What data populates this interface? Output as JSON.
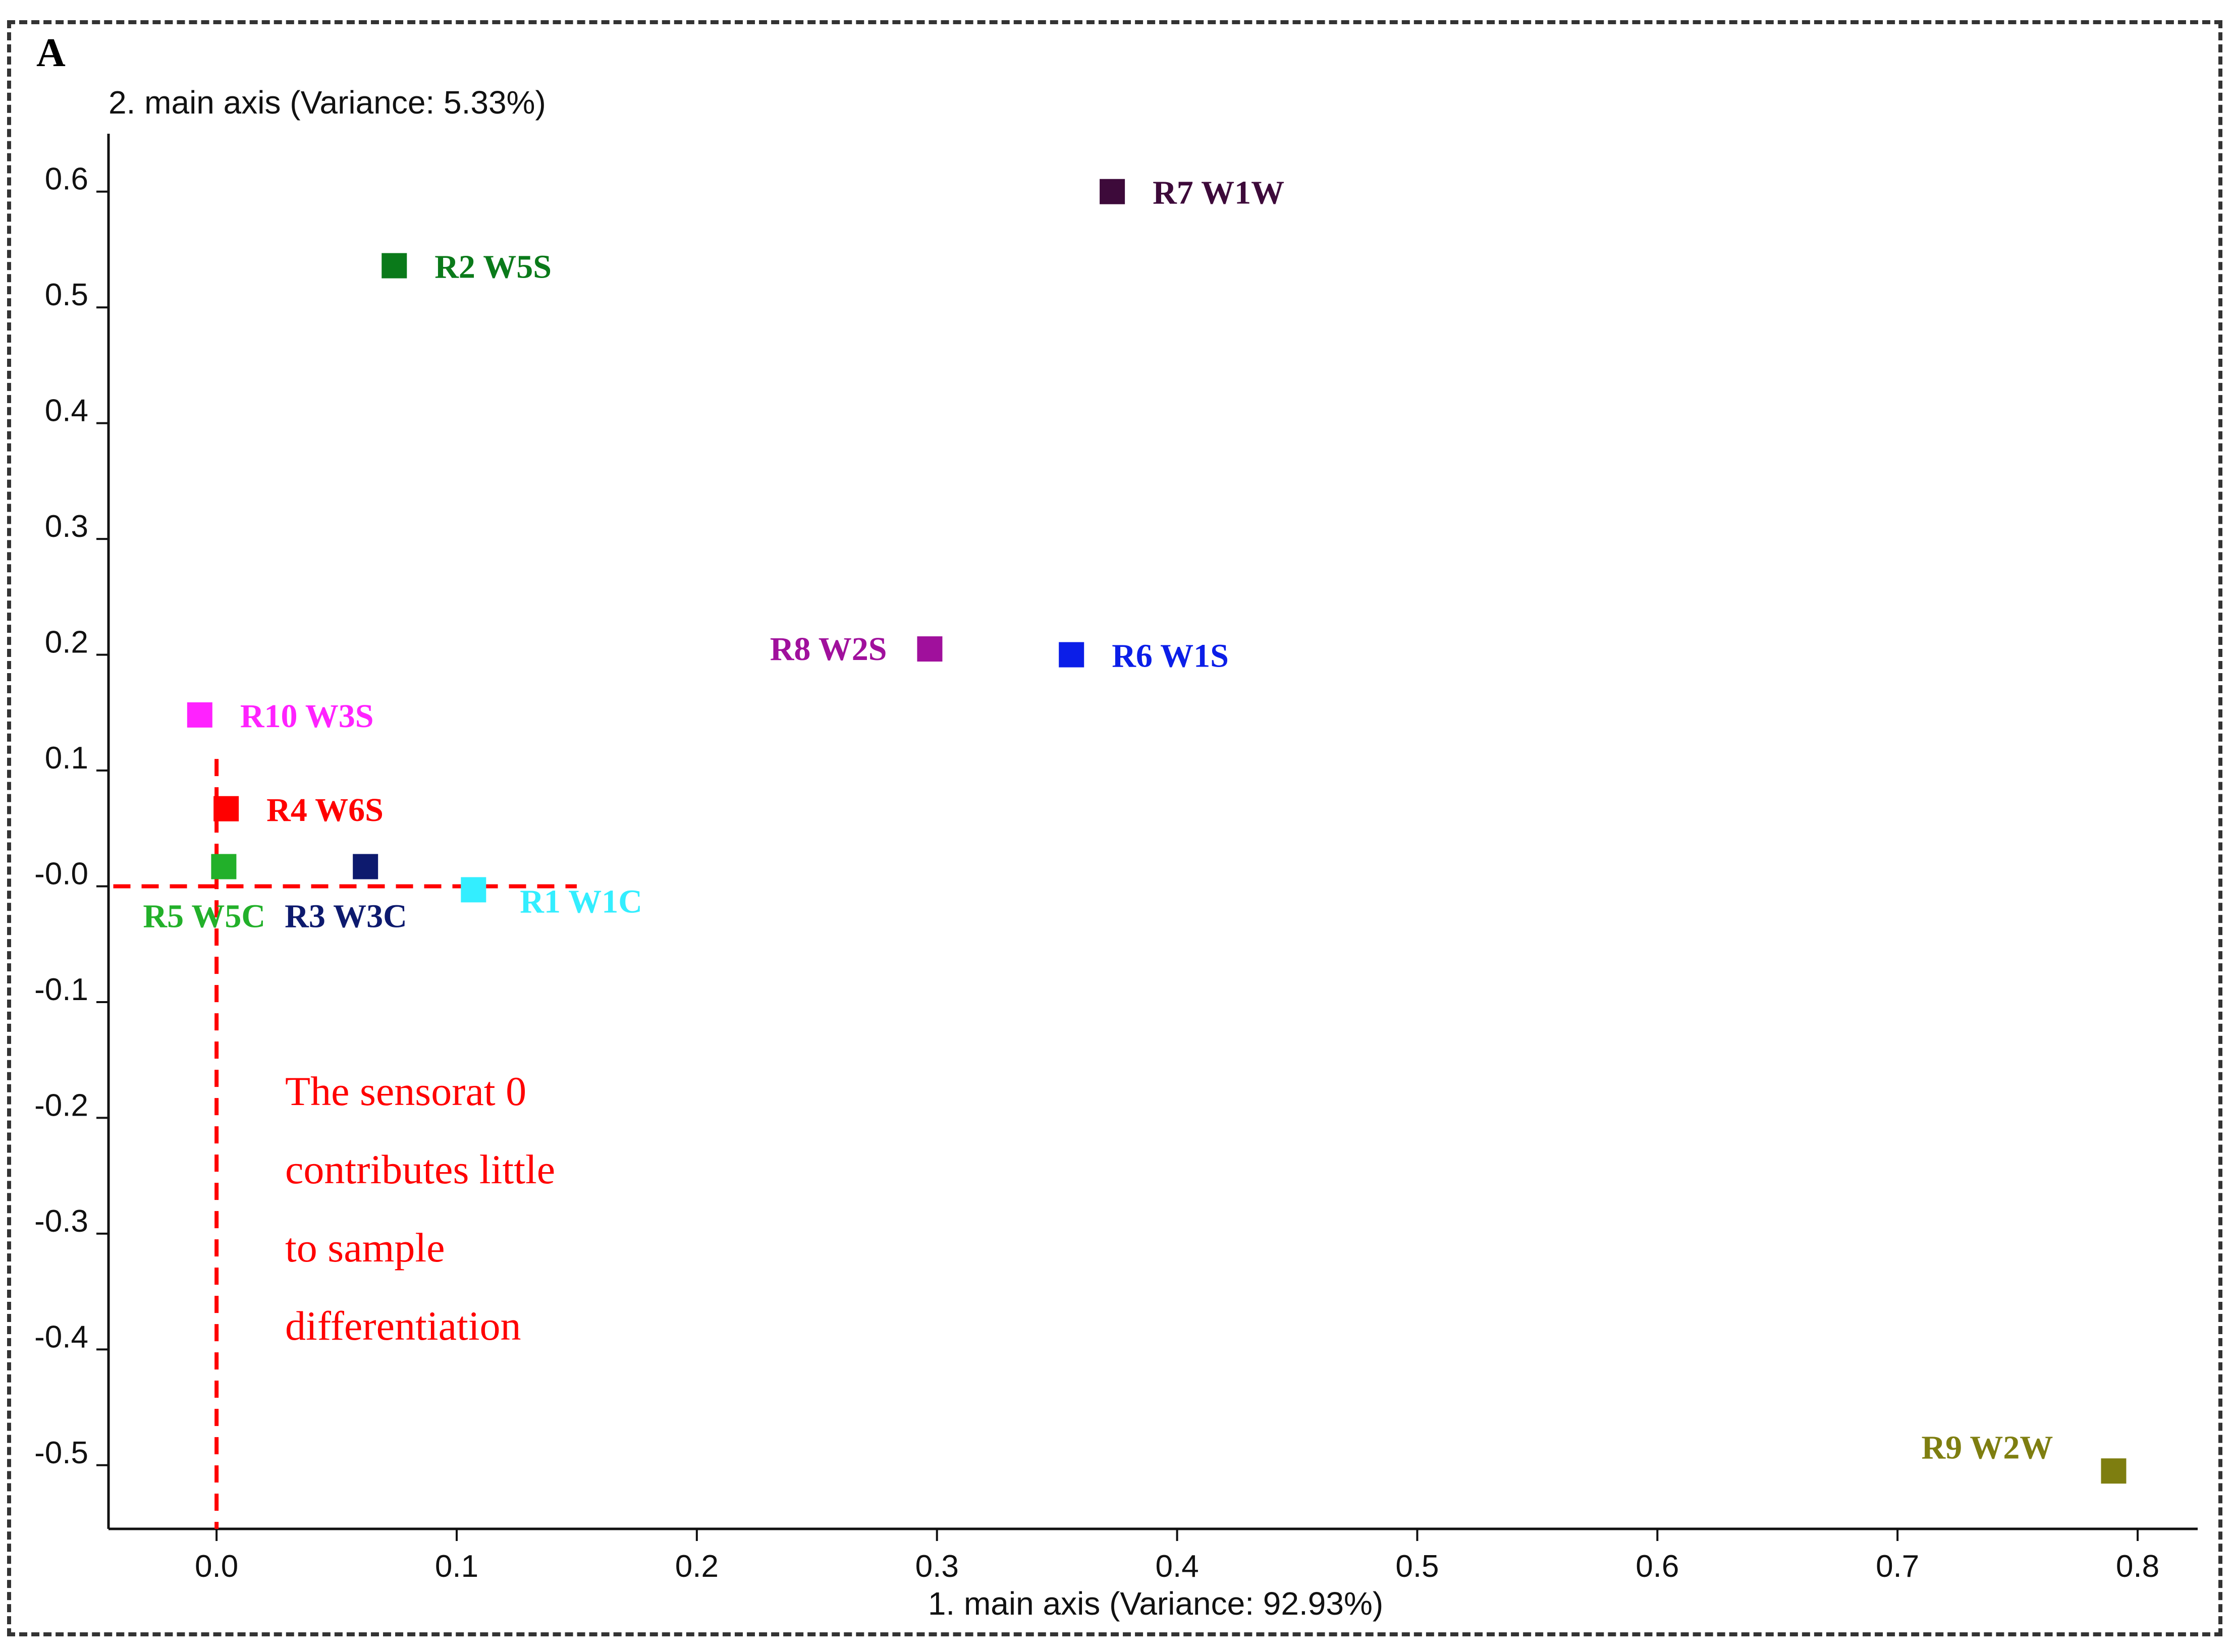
{
  "panel_label": "A",
  "chart_data": {
    "type": "scatter",
    "title": "",
    "xlabel": "1. main axis (Variance: 92.93%)",
    "ylabel": "2. main axis (Variance: 5.33%)",
    "xlim": [
      -0.045,
      0.825
    ],
    "ylim": [
      -0.555,
      0.65
    ],
    "x_ticks": [
      0.0,
      0.1,
      0.2,
      0.3,
      0.4,
      0.5,
      0.6,
      0.7,
      0.8
    ],
    "x_tick_labels": [
      "0.0",
      "0.1",
      "0.2",
      "0.3",
      "0.4",
      "0.5",
      "0.6",
      "0.7",
      "0.8"
    ],
    "y_ticks": [
      0.6,
      0.5,
      0.4,
      0.3,
      0.2,
      0.1,
      0.0,
      -0.1,
      -0.2,
      -0.3,
      -0.4,
      -0.5
    ],
    "y_tick_labels": [
      "0.6",
      "0.5",
      "0.4",
      "0.3",
      "0.2",
      "0.1",
      "-0.0",
      "-0.1",
      "-0.2",
      "-0.3",
      "-0.4",
      "-0.5"
    ],
    "grid": false,
    "points": [
      {
        "label": "R1 W1C",
        "x": 0.107,
        "y": -0.003,
        "color": "#33eeff",
        "anchor": "right-below"
      },
      {
        "label": "R2 W5S",
        "x": 0.074,
        "y": 0.536,
        "color": "#0a7a1a",
        "anchor": "right"
      },
      {
        "label": "R3 W3C",
        "x": 0.062,
        "y": 0.017,
        "color": "#0d1a6e",
        "anchor": "below-left"
      },
      {
        "label": "R4 W6S",
        "x": 0.004,
        "y": 0.067,
        "color": "#ff0000",
        "anchor": "right"
      },
      {
        "label": "R5 W5C",
        "x": 0.003,
        "y": 0.017,
        "color": "#22b02a",
        "anchor": "below-left"
      },
      {
        "label": "R6 W1S",
        "x": 0.356,
        "y": 0.2,
        "color": "#0b1ee8",
        "anchor": "right"
      },
      {
        "label": "R7 W1W",
        "x": 0.373,
        "y": 0.6,
        "color": "#3d0a3a",
        "anchor": "right"
      },
      {
        "label": "R8 W2S",
        "x": 0.297,
        "y": 0.205,
        "color": "#a0109c",
        "anchor": "left"
      },
      {
        "label": "R9 W2W",
        "x": 0.79,
        "y": -0.505,
        "color": "#7e7e10",
        "anchor": "left-above"
      },
      {
        "label": "R10 W3S",
        "x": -0.007,
        "y": 0.148,
        "color": "#ff22ff",
        "anchor": "right"
      }
    ],
    "reference_lines": {
      "color": "#ff0000",
      "x": 0.0,
      "y": 0.0
    },
    "annotation": {
      "lines": [
        "The sensorat 0",
        "contributes little",
        "to sample",
        "differentiation"
      ],
      "color": "#ff0000"
    }
  }
}
